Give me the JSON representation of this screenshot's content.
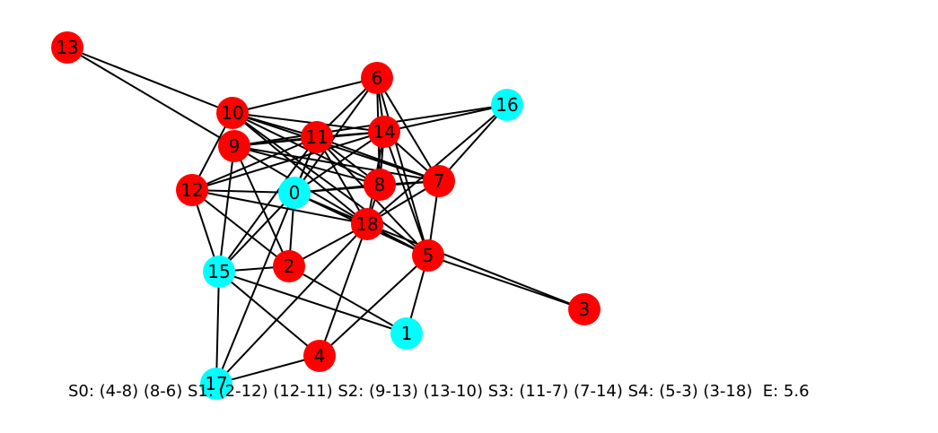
{
  "graph": {
    "colors": {
      "red": "#ff0000",
      "cyan": "#00ffff",
      "edge": "#000000"
    },
    "nodes": [
      {
        "id": "0",
        "color": "cyan"
      },
      {
        "id": "1",
        "color": "cyan"
      },
      {
        "id": "2",
        "color": "red"
      },
      {
        "id": "3",
        "color": "red"
      },
      {
        "id": "4",
        "color": "red"
      },
      {
        "id": "5",
        "color": "red"
      },
      {
        "id": "6",
        "color": "red"
      },
      {
        "id": "7",
        "color": "red"
      },
      {
        "id": "8",
        "color": "red"
      },
      {
        "id": "9",
        "color": "red"
      },
      {
        "id": "10",
        "color": "red"
      },
      {
        "id": "11",
        "color": "red"
      },
      {
        "id": "12",
        "color": "red"
      },
      {
        "id": "13",
        "color": "red"
      },
      {
        "id": "14",
        "color": "red"
      },
      {
        "id": "15",
        "color": "cyan"
      },
      {
        "id": "16",
        "color": "cyan"
      },
      {
        "id": "17",
        "color": "cyan"
      },
      {
        "id": "18",
        "color": "red"
      }
    ],
    "edges": [
      [
        "13",
        "10"
      ],
      [
        "13",
        "9"
      ],
      [
        "10",
        "6"
      ],
      [
        "10",
        "11"
      ],
      [
        "10",
        "14"
      ],
      [
        "10",
        "7"
      ],
      [
        "10",
        "18"
      ],
      [
        "10",
        "8"
      ],
      [
        "10",
        "12"
      ],
      [
        "10",
        "5"
      ],
      [
        "6",
        "11"
      ],
      [
        "6",
        "14"
      ],
      [
        "6",
        "8"
      ],
      [
        "6",
        "7"
      ],
      [
        "6",
        "0"
      ],
      [
        "6",
        "5"
      ],
      [
        "16",
        "9"
      ],
      [
        "16",
        "14"
      ],
      [
        "16",
        "18"
      ],
      [
        "16",
        "7"
      ],
      [
        "9",
        "11"
      ],
      [
        "9",
        "7"
      ],
      [
        "9",
        "18"
      ],
      [
        "9",
        "2"
      ],
      [
        "9",
        "15"
      ],
      [
        "9",
        "14"
      ],
      [
        "9",
        "8"
      ],
      [
        "11",
        "14"
      ],
      [
        "11",
        "0"
      ],
      [
        "11",
        "8"
      ],
      [
        "11",
        "7"
      ],
      [
        "11",
        "18"
      ],
      [
        "11",
        "15"
      ],
      [
        "11",
        "12"
      ],
      [
        "11",
        "5"
      ],
      [
        "11",
        "17"
      ],
      [
        "14",
        "8"
      ],
      [
        "14",
        "0"
      ],
      [
        "14",
        "5"
      ],
      [
        "14",
        "18"
      ],
      [
        "14",
        "7"
      ],
      [
        "14",
        "12"
      ],
      [
        "12",
        "0"
      ],
      [
        "12",
        "18"
      ],
      [
        "12",
        "15"
      ],
      [
        "12",
        "2"
      ],
      [
        "0",
        "18"
      ],
      [
        "0",
        "2"
      ],
      [
        "0",
        "15"
      ],
      [
        "0",
        "5"
      ],
      [
        "0",
        "8"
      ],
      [
        "0",
        "7"
      ],
      [
        "8",
        "7"
      ],
      [
        "8",
        "18"
      ],
      [
        "7",
        "18"
      ],
      [
        "7",
        "5"
      ],
      [
        "18",
        "2"
      ],
      [
        "18",
        "5"
      ],
      [
        "18",
        "4"
      ],
      [
        "18",
        "17"
      ],
      [
        "18",
        "3"
      ],
      [
        "5",
        "1"
      ],
      [
        "5",
        "3"
      ],
      [
        "5",
        "4"
      ],
      [
        "15",
        "2"
      ],
      [
        "15",
        "1"
      ],
      [
        "15",
        "4"
      ],
      [
        "15",
        "17"
      ],
      [
        "2",
        "1"
      ],
      [
        "4",
        "17"
      ]
    ]
  },
  "caption": "S0: (4-8) (8-6) S1: (2-12) (12-11) S2: (9-13) (13-10) S3: (11-7) (7-14) S4: (5-3) (3-18)  E: 5.6"
}
